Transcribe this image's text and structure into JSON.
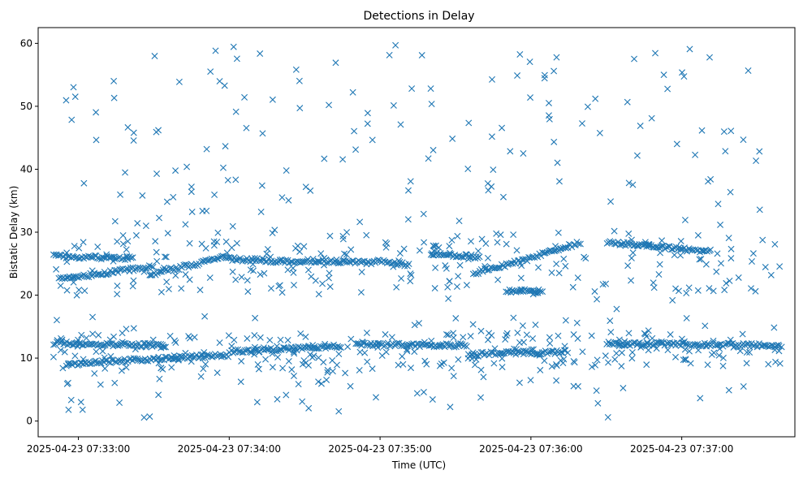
{
  "chart_data": {
    "type": "scatter",
    "title": "Detections in Delay",
    "xlabel": "Time (UTC)",
    "ylabel": "Bistatic Delay (km)",
    "x_range": [
      "2025-04-23 07:32:44",
      "2025-04-23 07:37:45"
    ],
    "ylim": [
      -2.5,
      62.5
    ],
    "x_ticks": [
      "2025-04-23 07:33:00",
      "2025-04-23 07:34:00",
      "2025-04-23 07:35:00",
      "2025-04-23 07:36:00",
      "2025-04-23 07:37:00"
    ],
    "y_ticks": [
      0,
      10,
      20,
      30,
      40,
      50,
      60
    ],
    "grid": false,
    "marker": "x",
    "color": "#1f77b4",
    "time_span": [
      "2025-04-23 07:32:50",
      "2025-04-23 07:37:40"
    ],
    "tracks": [
      {
        "from": "2025-04-23 07:32:50",
        "to": "2025-04-23 07:33:22",
        "start_km": 26.2,
        "end_km": 25.8
      },
      {
        "from": "2025-04-23 07:32:52",
        "to": "2025-04-23 07:33:30",
        "start_km": 22.5,
        "end_km": 24.6
      },
      {
        "from": "2025-04-23 07:33:28",
        "to": "2025-04-23 07:33:58",
        "start_km": 23.2,
        "end_km": 26.0
      },
      {
        "from": "2025-04-23 07:33:58",
        "to": "2025-04-23 07:34:30",
        "start_km": 25.8,
        "end_km": 25.2
      },
      {
        "from": "2025-04-23 07:34:30",
        "to": "2025-04-23 07:34:58",
        "start_km": 25.5,
        "end_km": 25.2
      },
      {
        "from": "2025-04-23 07:34:58",
        "to": "2025-04-23 07:35:12",
        "start_km": 25.4,
        "end_km": 24.8
      },
      {
        "from": "2025-04-23 07:35:20",
        "to": "2025-04-23 07:35:40",
        "start_km": 26.7,
        "end_km": 26.0
      },
      {
        "from": "2025-04-23 07:35:37",
        "to": "2025-04-23 07:36:02",
        "start_km": 23.5,
        "end_km": 26.0
      },
      {
        "from": "2025-04-23 07:36:02",
        "to": "2025-04-23 07:36:20",
        "start_km": 26.2,
        "end_km": 28.4
      },
      {
        "from": "2025-04-23 07:36:30",
        "to": "2025-04-23 07:37:12",
        "start_km": 28.4,
        "end_km": 26.9
      },
      {
        "from": "2025-04-23 07:35:50",
        "to": "2025-04-23 07:36:05",
        "start_km": 20.7,
        "end_km": 20.6
      },
      {
        "from": "2025-04-23 07:32:50",
        "to": "2025-04-23 07:33:35",
        "start_km": 12.4,
        "end_km": 12.0
      },
      {
        "from": "2025-04-23 07:32:55",
        "to": "2025-04-23 07:33:35",
        "start_km": 9.0,
        "end_km": 10.0
      },
      {
        "from": "2025-04-23 07:33:35",
        "to": "2025-04-23 07:34:00",
        "start_km": 10.0,
        "end_km": 10.5
      },
      {
        "from": "2025-04-23 07:34:00",
        "to": "2025-04-23 07:34:45",
        "start_km": 11.0,
        "end_km": 11.9
      },
      {
        "from": "2025-04-23 07:34:50",
        "to": "2025-04-23 07:35:35",
        "start_km": 12.2,
        "end_km": 12.0
      },
      {
        "from": "2025-04-23 07:35:35",
        "to": "2025-04-23 07:36:15",
        "start_km": 10.6,
        "end_km": 11.0
      },
      {
        "from": "2025-04-23 07:36:30",
        "to": "2025-04-23 07:37:40",
        "start_km": 12.3,
        "end_km": 12.0
      }
    ]
  }
}
